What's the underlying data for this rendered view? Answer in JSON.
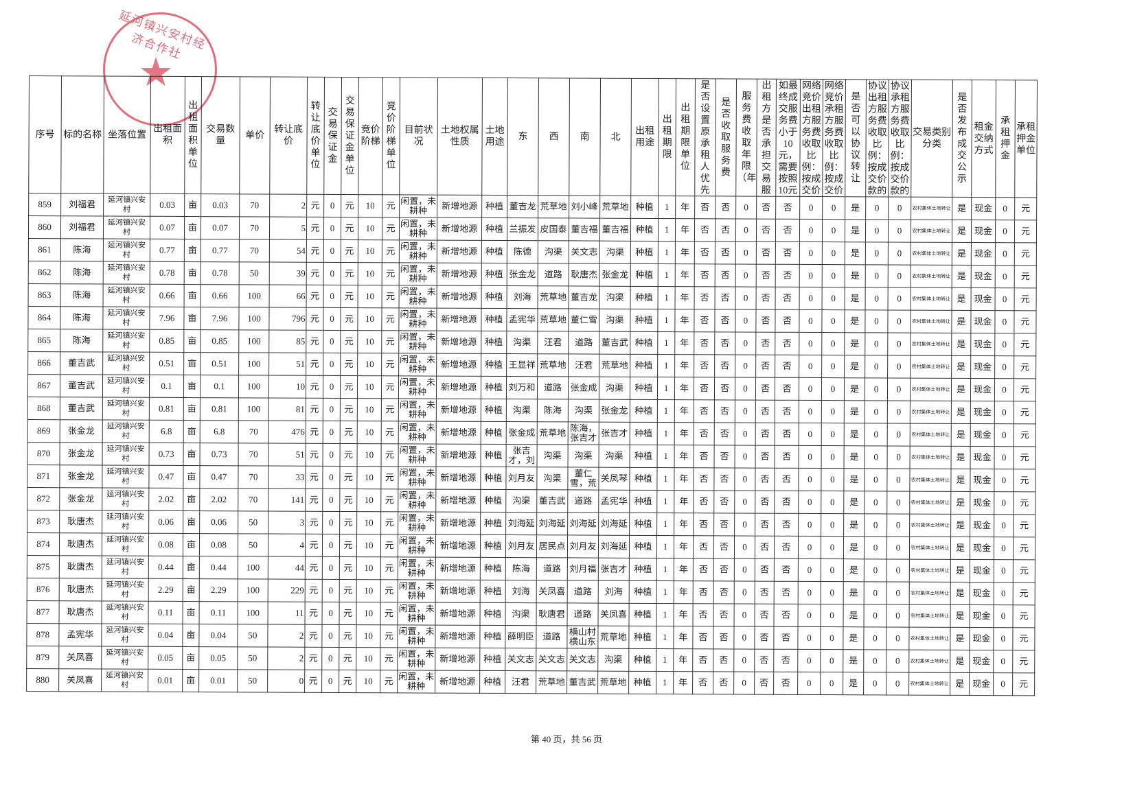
{
  "stamp": "延河镇兴安村经济合作社",
  "table": {
    "headers": [
      "序号",
      "标的名称",
      "坐落位置",
      "出租面积",
      "出租面积单位",
      "交易数量",
      "单价",
      "转让底价",
      "转让底价单位",
      "交易保证金",
      "交易保证金单位",
      "竞价阶梯",
      "竞价阶梯单位",
      "目前状况",
      "土地权属性质",
      "土地用途",
      "东",
      "西",
      "南",
      "北",
      "出租用途",
      "出租期限",
      "出租期限单位",
      "是否设置原承租人优先权",
      "是否收取服务费",
      "服务费收取年限（年）",
      "出租方是否承担交易服务费",
      "如最终成交服务费小于10元，需要按照10元收取",
      "网络竞价出租方服务费收取比例：按成交价款的",
      "网络竞价承租方服务费收取比例：按成交价款的",
      "是否可以协议转让",
      "协议出租方服务费收取比例：按成交价款的",
      "协议承租方服务费收取比例：按成交价款的",
      "交易类别分类",
      "是否发布成交公示",
      "租金交纳方式",
      "承租押金",
      "承租押金单位"
    ],
    "rows": [
      [
        "859",
        "刘福君",
        "延河镇兴安村",
        "0.03",
        "亩",
        "0.03",
        "70",
        "2",
        "元",
        "0",
        "元",
        "10",
        "元",
        "闲置，未耕种",
        "新增地源",
        "种植",
        "董吉龙",
        "荒草地",
        "刘小峰",
        "荒草地",
        "种植",
        "1",
        "年",
        "否",
        "否",
        "0",
        "否",
        "否",
        "0",
        "0",
        "是",
        "0",
        "0",
        "农村集体土地转让",
        "是",
        "现金",
        "0",
        "元"
      ],
      [
        "860",
        "刘福君",
        "延河镇兴安村",
        "0.07",
        "亩",
        "0.07",
        "70",
        "5",
        "元",
        "0",
        "元",
        "10",
        "元",
        "闲置，未耕种",
        "新增地源",
        "种植",
        "兰振发",
        "皮国泰",
        "董吉福",
        "董吉福",
        "种植",
        "1",
        "年",
        "否",
        "否",
        "0",
        "否",
        "否",
        "0",
        "0",
        "是",
        "0",
        "0",
        "农村集体土地转让",
        "是",
        "现金",
        "0",
        "元"
      ],
      [
        "861",
        "陈海",
        "延河镇兴安村",
        "0.77",
        "亩",
        "0.77",
        "70",
        "54",
        "元",
        "0",
        "元",
        "10",
        "元",
        "闲置，未耕种",
        "新增地源",
        "种植",
        "陈德",
        "沟渠",
        "关文志",
        "沟渠",
        "种植",
        "1",
        "年",
        "否",
        "否",
        "0",
        "否",
        "否",
        "0",
        "0",
        "是",
        "0",
        "0",
        "农村集体土地转让",
        "是",
        "现金",
        "0",
        "元"
      ],
      [
        "862",
        "陈海",
        "延河镇兴安村",
        "0.78",
        "亩",
        "0.78",
        "50",
        "39",
        "元",
        "0",
        "元",
        "10",
        "元",
        "闲置，未耕种",
        "新增地源",
        "种植",
        "张金龙",
        "道路",
        "耿唐杰",
        "张金龙",
        "种植",
        "1",
        "年",
        "否",
        "否",
        "0",
        "否",
        "否",
        "0",
        "0",
        "是",
        "0",
        "0",
        "农村集体土地转让",
        "是",
        "现金",
        "0",
        "元"
      ],
      [
        "863",
        "陈海",
        "延河镇兴安村",
        "0.66",
        "亩",
        "0.66",
        "100",
        "66",
        "元",
        "0",
        "元",
        "10",
        "元",
        "闲置，未耕种",
        "新增地源",
        "种植",
        "刘海",
        "荒草地",
        "董吉龙",
        "沟渠",
        "种植",
        "1",
        "年",
        "否",
        "否",
        "0",
        "否",
        "否",
        "0",
        "0",
        "是",
        "0",
        "0",
        "农村集体土地转让",
        "是",
        "现金",
        "0",
        "元"
      ],
      [
        "864",
        "陈海",
        "延河镇兴安村",
        "7.96",
        "亩",
        "7.96",
        "100",
        "796",
        "元",
        "0",
        "元",
        "10",
        "元",
        "闲置，未耕种",
        "新增地源",
        "种植",
        "孟宪华",
        "荒草地",
        "董仁雪",
        "沟渠",
        "种植",
        "1",
        "年",
        "否",
        "否",
        "0",
        "否",
        "否",
        "0",
        "0",
        "是",
        "0",
        "0",
        "农村集体土地转让",
        "是",
        "现金",
        "0",
        "元"
      ],
      [
        "865",
        "陈海",
        "延河镇兴安村",
        "0.85",
        "亩",
        "0.85",
        "100",
        "85",
        "元",
        "0",
        "元",
        "10",
        "元",
        "闲置，未耕种",
        "新增地源",
        "种植",
        "沟渠",
        "汪君",
        "道路",
        "董吉武",
        "种植",
        "1",
        "年",
        "否",
        "否",
        "0",
        "否",
        "否",
        "0",
        "0",
        "是",
        "0",
        "0",
        "农村集体土地转让",
        "是",
        "现金",
        "0",
        "元"
      ],
      [
        "866",
        "董吉武",
        "延河镇兴安村",
        "0.51",
        "亩",
        "0.51",
        "100",
        "51",
        "元",
        "0",
        "元",
        "10",
        "元",
        "闲置，未耕种",
        "新增地源",
        "种植",
        "王显祥",
        "荒草地",
        "汪君",
        "荒草地",
        "种植",
        "1",
        "年",
        "否",
        "否",
        "0",
        "否",
        "否",
        "0",
        "0",
        "是",
        "0",
        "0",
        "农村集体土地转让",
        "是",
        "现金",
        "0",
        "元"
      ],
      [
        "867",
        "董吉武",
        "延河镇兴安村",
        "0.1",
        "亩",
        "0.1",
        "100",
        "10",
        "元",
        "0",
        "元",
        "10",
        "元",
        "闲置，未耕种",
        "新增地源",
        "种植",
        "刘万和",
        "道路",
        "张金成",
        "沟渠",
        "种植",
        "1",
        "年",
        "否",
        "否",
        "0",
        "否",
        "否",
        "0",
        "0",
        "是",
        "0",
        "0",
        "农村集体土地转让",
        "是",
        "现金",
        "0",
        "元"
      ],
      [
        "868",
        "董吉武",
        "延河镇兴安村",
        "0.81",
        "亩",
        "0.81",
        "100",
        "81",
        "元",
        "0",
        "元",
        "10",
        "元",
        "闲置，未耕种",
        "新增地源",
        "种植",
        "沟渠",
        "陈海",
        "沟渠",
        "张金龙",
        "种植",
        "1",
        "年",
        "否",
        "否",
        "0",
        "否",
        "否",
        "0",
        "0",
        "是",
        "0",
        "0",
        "农村集体土地转让",
        "是",
        "现金",
        "0",
        "元"
      ],
      [
        "869",
        "张金龙",
        "延河镇兴安村",
        "6.8",
        "亩",
        "6.8",
        "70",
        "476",
        "元",
        "0",
        "元",
        "10",
        "元",
        "闲置，未耕种",
        "新增地源",
        "种植",
        "张金成",
        "荒草地",
        "陈海，张吉才",
        "张吉才",
        "种植",
        "1",
        "年",
        "否",
        "否",
        "0",
        "否",
        "否",
        "0",
        "0",
        "是",
        "0",
        "0",
        "农村集体土地转让",
        "是",
        "现金",
        "0",
        "元"
      ],
      [
        "870",
        "张金龙",
        "延河镇兴安村",
        "0.73",
        "亩",
        "0.73",
        "70",
        "51",
        "元",
        "0",
        "元",
        "10",
        "元",
        "闲置，未耕种",
        "新增地源",
        "种植",
        "张吉才，刘",
        "沟渠",
        "沟渠",
        "沟渠",
        "种植",
        "1",
        "年",
        "否",
        "否",
        "0",
        "否",
        "否",
        "0",
        "0",
        "是",
        "0",
        "0",
        "农村集体土地转让",
        "是",
        "现金",
        "0",
        "元"
      ],
      [
        "871",
        "张金龙",
        "延河镇兴安村",
        "0.47",
        "亩",
        "0.47",
        "70",
        "33",
        "元",
        "0",
        "元",
        "10",
        "元",
        "闲置，未耕种",
        "新增地源",
        "种植",
        "刘月友",
        "沟渠",
        "董仁雪，荒",
        "关凤琴",
        "种植",
        "1",
        "年",
        "否",
        "否",
        "0",
        "否",
        "否",
        "0",
        "0",
        "是",
        "0",
        "0",
        "农村集体土地转让",
        "是",
        "现金",
        "0",
        "元"
      ],
      [
        "872",
        "张金龙",
        "延河镇兴安村",
        "2.02",
        "亩",
        "2.02",
        "70",
        "141",
        "元",
        "0",
        "元",
        "10",
        "元",
        "闲置，未耕种",
        "新增地源",
        "种植",
        "沟渠",
        "董吉武",
        "道路",
        "孟宪华",
        "种植",
        "1",
        "年",
        "否",
        "否",
        "0",
        "否",
        "否",
        "0",
        "0",
        "是",
        "0",
        "0",
        "农村集体土地转让",
        "是",
        "现金",
        "0",
        "元"
      ],
      [
        "873",
        "耿唐杰",
        "延河镇兴安村",
        "0.06",
        "亩",
        "0.06",
        "50",
        "3",
        "元",
        "0",
        "元",
        "10",
        "元",
        "闲置，未耕种",
        "新增地源",
        "种植",
        "刘海延",
        "刘海延",
        "刘海延",
        "刘海延",
        "种植",
        "1",
        "年",
        "否",
        "否",
        "0",
        "否",
        "否",
        "0",
        "0",
        "是",
        "0",
        "0",
        "农村集体土地转让",
        "是",
        "现金",
        "0",
        "元"
      ],
      [
        "874",
        "耿唐杰",
        "延河镇兴安村",
        "0.08",
        "亩",
        "0.08",
        "50",
        "4",
        "元",
        "0",
        "元",
        "10",
        "元",
        "闲置，未耕种",
        "新增地源",
        "种植",
        "刘月友",
        "居民点",
        "刘月友",
        "刘海延",
        "种植",
        "1",
        "年",
        "否",
        "否",
        "0",
        "否",
        "否",
        "0",
        "0",
        "是",
        "0",
        "0",
        "农村集体土地转让",
        "是",
        "现金",
        "0",
        "元"
      ],
      [
        "875",
        "耿唐杰",
        "延河镇兴安村",
        "0.44",
        "亩",
        "0.44",
        "100",
        "44",
        "元",
        "0",
        "元",
        "10",
        "元",
        "闲置，未耕种",
        "新增地源",
        "种植",
        "陈海",
        "道路",
        "刘月福",
        "张吉才",
        "种植",
        "1",
        "年",
        "否",
        "否",
        "0",
        "否",
        "否",
        "0",
        "0",
        "是",
        "0",
        "0",
        "农村集体土地转让",
        "是",
        "现金",
        "0",
        "元"
      ],
      [
        "876",
        "耿唐杰",
        "延河镇兴安村",
        "2.29",
        "亩",
        "2.29",
        "100",
        "229",
        "元",
        "0",
        "元",
        "10",
        "元",
        "闲置，未耕种",
        "新增地源",
        "种植",
        "刘海",
        "关凤喜",
        "道路",
        "刘海",
        "种植",
        "1",
        "年",
        "否",
        "否",
        "0",
        "否",
        "否",
        "0",
        "0",
        "是",
        "0",
        "0",
        "农村集体土地转让",
        "是",
        "现金",
        "0",
        "元"
      ],
      [
        "877",
        "耿唐杰",
        "延河镇兴安村",
        "0.11",
        "亩",
        "0.11",
        "100",
        "11",
        "元",
        "0",
        "元",
        "10",
        "元",
        "闲置，未耕种",
        "新增地源",
        "种植",
        "沟渠",
        "耿唐君",
        "道路",
        "关凤喜",
        "种植",
        "1",
        "年",
        "否",
        "否",
        "0",
        "否",
        "否",
        "0",
        "0",
        "是",
        "0",
        "0",
        "农村集体土地转让",
        "是",
        "现金",
        "0",
        "元"
      ],
      [
        "878",
        "孟宪华",
        "延河镇兴安村",
        "0.04",
        "亩",
        "0.04",
        "50",
        "2",
        "元",
        "0",
        "元",
        "10",
        "元",
        "闲置，未耕种",
        "新增地源",
        "种植",
        "薛明臣",
        "道路",
        "横山村横山东",
        "荒草地",
        "种植",
        "1",
        "年",
        "否",
        "否",
        "0",
        "否",
        "否",
        "0",
        "0",
        "是",
        "0",
        "0",
        "农村集体土地转让",
        "是",
        "现金",
        "0",
        "元"
      ],
      [
        "879",
        "关凤喜",
        "延河镇兴安村",
        "0.05",
        "亩",
        "0.05",
        "50",
        "2",
        "元",
        "0",
        "元",
        "10",
        "元",
        "闲置，未耕种",
        "新增地源",
        "种植",
        "关文志",
        "关文志",
        "关文志",
        "沟渠",
        "种植",
        "1",
        "年",
        "否",
        "否",
        "0",
        "否",
        "否",
        "0",
        "0",
        "是",
        "0",
        "0",
        "农村集体土地转让",
        "是",
        "现金",
        "0",
        "元"
      ],
      [
        "880",
        "关凤喜",
        "延河镇兴安村",
        "0.01",
        "亩",
        "0.01",
        "50",
        "0",
        "元",
        "0",
        "元",
        "10",
        "元",
        "闲置，未耕种",
        "新增地源",
        "种植",
        "汪君",
        "荒草地",
        "董吉武",
        "荒草地",
        "种植",
        "1",
        "年",
        "否",
        "否",
        "0",
        "否",
        "否",
        "0",
        "0",
        "是",
        "0",
        "0",
        "农村集体土地转让",
        "是",
        "现金",
        "0",
        "元"
      ]
    ]
  },
  "footer": {
    "page": "第 40 页，共 56 页"
  }
}
